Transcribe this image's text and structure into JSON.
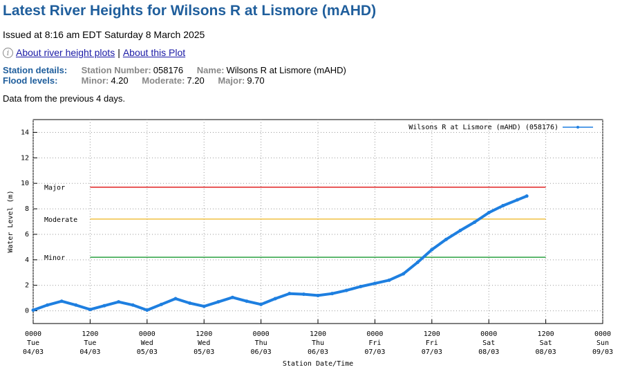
{
  "header": {
    "title": "Latest River Heights for Wilsons R at Lismore (mAHD)",
    "issued": "Issued at 8:16 am EDT Saturday 8 March 2025"
  },
  "links": {
    "info_icon": "info-icon",
    "about_heights": "About river height plots",
    "separator": "|",
    "about_plot": "About this Plot"
  },
  "station": {
    "label": "Station details:",
    "number_key": "Station Number:",
    "number": "058176",
    "name_key": "Name:",
    "name": "Wilsons R at Lismore (mAHD)"
  },
  "flood": {
    "label": "Flood levels:",
    "minor_key": "Minor:",
    "minor": "4.20",
    "moderate_key": "Moderate:",
    "moderate": "7.20",
    "major_key": "Major:",
    "major": "9.70"
  },
  "note": "Data from the previous 4 days.",
  "colors": {
    "title": "#1f5e9c",
    "series": "#1e7fe0",
    "major": "#e02020",
    "moderate": "#f0c040",
    "minor": "#2aa040"
  },
  "chart_data": {
    "type": "line",
    "xlabel": "Station Date/Time",
    "ylabel": "Water Level (m)",
    "ylim": [
      -1,
      15
    ],
    "yticks": [
      0,
      2,
      4,
      6,
      8,
      10,
      12,
      14
    ],
    "xlim": [
      "2025-03-04 00:00",
      "2025-03-09 00:00"
    ],
    "xticks": [
      {
        "t": "2025-03-04 00:00",
        "l1": "0000",
        "l2": "Tue",
        "l3": "04/03"
      },
      {
        "t": "2025-03-04 12:00",
        "l1": "1200",
        "l2": "Tue",
        "l3": "04/03"
      },
      {
        "t": "2025-03-05 00:00",
        "l1": "0000",
        "l2": "Wed",
        "l3": "05/03"
      },
      {
        "t": "2025-03-05 12:00",
        "l1": "1200",
        "l2": "Wed",
        "l3": "05/03"
      },
      {
        "t": "2025-03-06 00:00",
        "l1": "0000",
        "l2": "Thu",
        "l3": "06/03"
      },
      {
        "t": "2025-03-06 12:00",
        "l1": "1200",
        "l2": "Thu",
        "l3": "06/03"
      },
      {
        "t": "2025-03-07 00:00",
        "l1": "0000",
        "l2": "Fri",
        "l3": "07/03"
      },
      {
        "t": "2025-03-07 12:00",
        "l1": "1200",
        "l2": "Fri",
        "l3": "07/03"
      },
      {
        "t": "2025-03-08 00:00",
        "l1": "0000",
        "l2": "Sat",
        "l3": "08/03"
      },
      {
        "t": "2025-03-08 12:00",
        "l1": "1200",
        "l2": "Sat",
        "l3": "08/03"
      },
      {
        "t": "2025-03-09 00:00",
        "l1": "0000",
        "l2": "Sun",
        "l3": "09/03"
      }
    ],
    "grid": true,
    "legend_position": "top-right",
    "thresholds": [
      {
        "label": "Major",
        "value": 9.7,
        "color": "#e02020",
        "x_start": "2025-03-04 12:00",
        "x_end": "2025-03-08 12:00"
      },
      {
        "label": "Moderate",
        "value": 7.2,
        "color": "#f0c040",
        "x_start": "2025-03-04 12:00",
        "x_end": "2025-03-08 12:00"
      },
      {
        "label": "Minor",
        "value": 4.2,
        "color": "#2aa040",
        "x_start": "2025-03-04 12:00",
        "x_end": "2025-03-08 12:00"
      }
    ],
    "series": [
      {
        "name": "Wilsons R at Lismore (mAHD) (058176)",
        "color": "#1e7fe0",
        "x": [
          "2025-03-04 00:00",
          "2025-03-04 03:00",
          "2025-03-04 06:00",
          "2025-03-04 09:00",
          "2025-03-04 12:00",
          "2025-03-04 15:00",
          "2025-03-04 18:00",
          "2025-03-04 21:00",
          "2025-03-05 00:00",
          "2025-03-05 03:00",
          "2025-03-05 06:00",
          "2025-03-05 09:00",
          "2025-03-05 12:00",
          "2025-03-05 15:00",
          "2025-03-05 18:00",
          "2025-03-05 21:00",
          "2025-03-06 00:00",
          "2025-03-06 03:00",
          "2025-03-06 06:00",
          "2025-03-06 09:00",
          "2025-03-06 12:00",
          "2025-03-06 15:00",
          "2025-03-06 18:00",
          "2025-03-06 21:00",
          "2025-03-07 00:00",
          "2025-03-07 03:00",
          "2025-03-07 06:00",
          "2025-03-07 09:00",
          "2025-03-07 12:00",
          "2025-03-07 15:00",
          "2025-03-07 18:00",
          "2025-03-07 21:00",
          "2025-03-08 00:00",
          "2025-03-08 03:00",
          "2025-03-08 06:00",
          "2025-03-08 08:00"
        ],
        "y": [
          0.05,
          0.45,
          0.75,
          0.45,
          0.1,
          0.4,
          0.7,
          0.45,
          0.05,
          0.5,
          0.95,
          0.6,
          0.35,
          0.7,
          1.05,
          0.75,
          0.5,
          0.95,
          1.35,
          1.3,
          1.2,
          1.35,
          1.6,
          1.9,
          2.15,
          2.4,
          2.9,
          3.8,
          4.8,
          5.6,
          6.3,
          6.95,
          7.7,
          8.25,
          8.7,
          9.0
        ]
      }
    ]
  }
}
